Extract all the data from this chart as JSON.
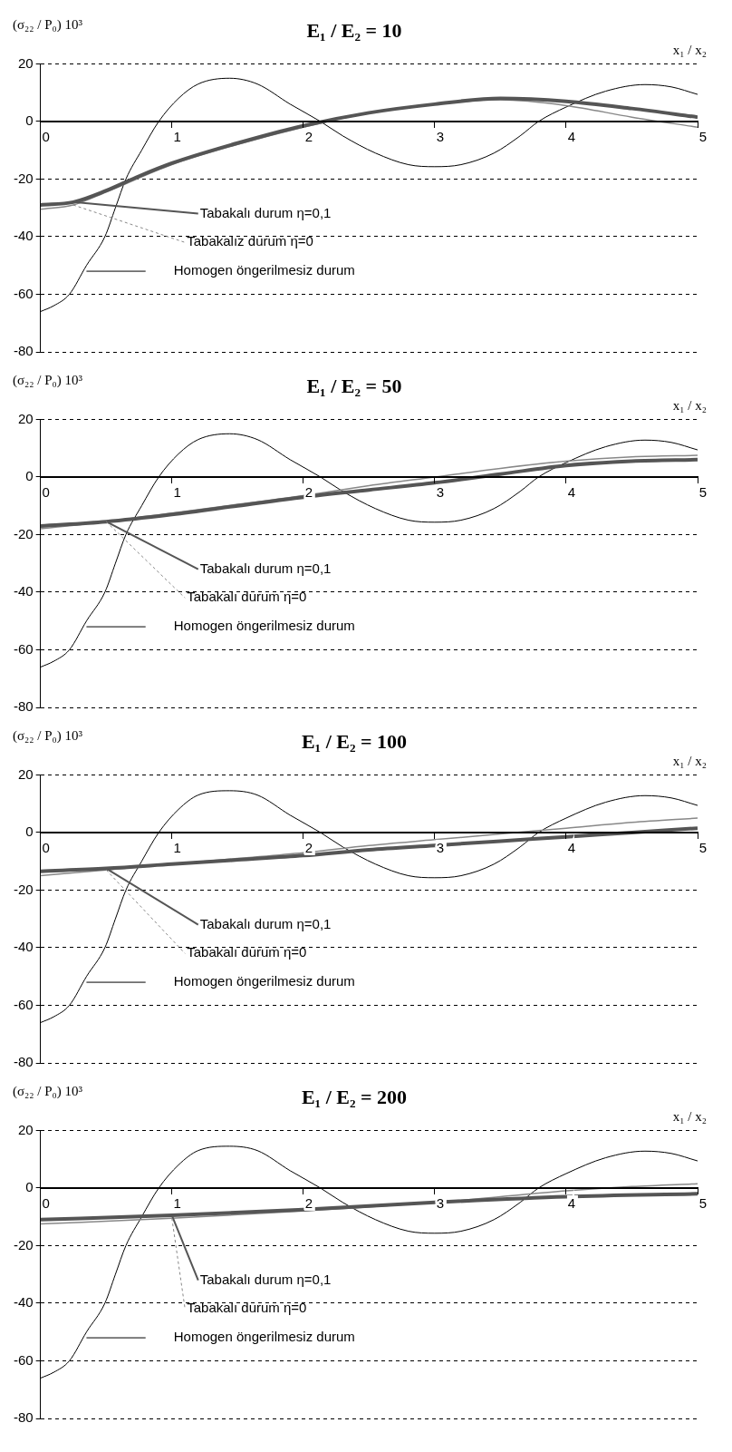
{
  "chart_data": [
    {
      "type": "line",
      "title": "E₁ / E₂ = 10",
      "ylabel": "(σ₂₂ / P₀) 10³",
      "xlabel": "x₁ / x₂",
      "xlim": [
        0,
        5
      ],
      "xticks": [
        0,
        1,
        2,
        3,
        4,
        5
      ],
      "ylim": [
        -80,
        20
      ],
      "yticks": [
        -80,
        -60,
        -40,
        -20,
        0,
        20
      ],
      "grid": "y",
      "legend": "left",
      "series": [
        {
          "name": "Tabakalı durum η=0,1",
          "color": "#555555",
          "x": [
            0,
            0.25,
            0.5,
            0.75,
            1,
            1.5,
            2,
            2.5,
            3,
            3.5,
            4,
            4.5,
            5
          ],
          "values": [
            -29,
            -28,
            -24,
            -19,
            -14.5,
            -7.5,
            -1.5,
            3,
            6,
            8,
            7,
            4.5,
            1.5
          ]
        },
        {
          "name": "Tabakalız durum η=0",
          "color": "#888888",
          "x": [
            0,
            0.25,
            0.5,
            1,
            1.5,
            2,
            2.5,
            3,
            3.5,
            4,
            4.5,
            5
          ],
          "values": [
            -30.5,
            -29,
            -24.5,
            -15,
            -8,
            -2,
            3,
            6,
            7.5,
            5.5,
            1.5,
            -2
          ]
        },
        {
          "name": "Homogen öngerilmesiz durum",
          "color": "#000000",
          "x": [
            0,
            0.1,
            0.22,
            0.35,
            0.49,
            0.57,
            0.65,
            0.77,
            0.9,
            1.05,
            1.2,
            1.44,
            1.65,
            1.9,
            2.13,
            2.3,
            2.55,
            2.8,
            3,
            3.2,
            3.45,
            3.65,
            3.79,
            4,
            4.3,
            4.6,
            4.8,
            5
          ],
          "values": [
            -66,
            -64,
            -60,
            -50,
            -40,
            -30,
            -20,
            -10,
            0,
            8,
            13,
            15,
            13,
            6,
            0,
            -5,
            -11,
            -15,
            -15.7,
            -15,
            -11,
            -5,
            0,
            5,
            10.5,
            12.8,
            12,
            9.4
          ]
        }
      ]
    },
    {
      "type": "line",
      "title": "E₁ / E₂ = 50",
      "ylabel": "(σ₂₂ / P₀) 10³",
      "xlabel": "x₁ / x₂",
      "xlim": [
        0,
        5
      ],
      "xticks": [
        0,
        1,
        2,
        3,
        4,
        5
      ],
      "ylim": [
        -80,
        20
      ],
      "yticks": [
        -80,
        -60,
        -40,
        -20,
        0,
        20
      ],
      "grid": "y",
      "legend": "left",
      "series": [
        {
          "name": "Tabakalı durum η=0,1",
          "color": "#555555",
          "x": [
            0,
            0.5,
            1,
            1.5,
            2,
            2.5,
            3,
            3.5,
            4,
            4.5,
            5
          ],
          "values": [
            -17,
            -15.5,
            -13,
            -10,
            -7,
            -4.5,
            -2,
            1,
            4,
            5.5,
            6
          ]
        },
        {
          "name": "Tabakalı durum η=0",
          "color": "#888888",
          "x": [
            0,
            0.5,
            1,
            1.5,
            2,
            2.5,
            3,
            3.5,
            4,
            4.5,
            5
          ],
          "values": [
            -18,
            -15.5,
            -12.5,
            -9.5,
            -6.5,
            -3,
            0,
            3,
            5.5,
            7,
            7.5
          ]
        },
        {
          "name": "Homogen öngerilmesiz durum",
          "color": "#000000",
          "x": [
            0,
            0.1,
            0.22,
            0.35,
            0.49,
            0.57,
            0.65,
            0.77,
            0.9,
            1.05,
            1.2,
            1.44,
            1.65,
            1.9,
            2.13,
            2.3,
            2.55,
            2.8,
            3,
            3.2,
            3.45,
            3.65,
            3.79,
            4,
            4.3,
            4.6,
            4.8,
            5
          ],
          "values": [
            -66,
            -64,
            -60,
            -50,
            -40,
            -30,
            -20,
            -10,
            0,
            8,
            13,
            15,
            13,
            6,
            0,
            -5,
            -11,
            -15,
            -15.7,
            -15,
            -11,
            -5,
            0,
            5,
            10.5,
            12.8,
            12,
            9.4
          ]
        }
      ]
    },
    {
      "type": "line",
      "title": "E₁ / E₂ = 100",
      "ylabel": "(σ₂₂ / P₀) 10³",
      "xlabel": "x₁ / x₂",
      "xlim": [
        0,
        5
      ],
      "xticks": [
        0,
        1,
        2,
        3,
        4,
        5
      ],
      "ylim": [
        -80,
        20
      ],
      "yticks": [
        -80,
        -60,
        -40,
        -20,
        0,
        20
      ],
      "grid": "y",
      "legend": "left",
      "series": [
        {
          "name": "Tabakalı durum η=0,1",
          "color": "#555555",
          "x": [
            0,
            0.5,
            1,
            1.5,
            2,
            2.5,
            3,
            3.5,
            4,
            4.5,
            5
          ],
          "values": [
            -13.5,
            -12.5,
            -11,
            -9.5,
            -8,
            -6,
            -4.5,
            -3,
            -1.5,
            0,
            1.5
          ]
        },
        {
          "name": "Tabakalı durum η=0",
          "color": "#888888",
          "x": [
            0,
            0.5,
            1,
            1.5,
            2,
            2.5,
            3,
            3.5,
            4,
            4.5,
            5
          ],
          "values": [
            -15,
            -13,
            -11,
            -9,
            -7,
            -4.5,
            -2.5,
            -0.5,
            1.5,
            3.5,
            5
          ]
        },
        {
          "name": "Homogen öngerilmesiz durum",
          "color": "#000000",
          "x": [
            0,
            0.1,
            0.22,
            0.35,
            0.49,
            0.57,
            0.65,
            0.77,
            0.9,
            1.05,
            1.2,
            1.44,
            1.65,
            1.9,
            2.13,
            2.3,
            2.55,
            2.8,
            3,
            3.2,
            3.45,
            3.65,
            3.79,
            4,
            4.3,
            4.6,
            4.8,
            5
          ],
          "values": [
            -66,
            -64,
            -60,
            -50,
            -40,
            -30,
            -20,
            -10,
            0,
            8,
            13,
            14.5,
            13,
            6,
            0,
            -5,
            -11,
            -15,
            -15.7,
            -15,
            -11,
            -5,
            0,
            5,
            10.5,
            12.8,
            12,
            9.4
          ]
        }
      ]
    },
    {
      "type": "line",
      "title": "E₁ / E₂ = 200",
      "ylabel": "(σ₂₂ / P₀) 10³",
      "xlabel": "x₁ / x₂",
      "xlim": [
        0,
        5
      ],
      "xticks": [
        0,
        1,
        2,
        3,
        4,
        5
      ],
      "ylim": [
        -80,
        20
      ],
      "yticks": [
        -80,
        -60,
        -40,
        -20,
        0,
        20
      ],
      "grid": "y",
      "legend": "left",
      "series": [
        {
          "name": "Tabakalı durum η=0,1",
          "color": "#555555",
          "x": [
            0,
            1,
            2,
            3,
            4,
            5
          ],
          "values": [
            -11,
            -9.5,
            -7.5,
            -5,
            -3,
            -2
          ]
        },
        {
          "name": "Tabakalı durum η=0",
          "color": "#888888",
          "x": [
            0,
            1,
            2,
            3,
            3.5,
            4,
            4.5,
            5
          ],
          "values": [
            -12.5,
            -10.5,
            -8,
            -5,
            -3,
            -1,
            0.5,
            1.5
          ]
        },
        {
          "name": "Homogen öngerilmesiz durum",
          "color": "#000000",
          "x": [
            0,
            0.1,
            0.22,
            0.35,
            0.49,
            0.57,
            0.65,
            0.77,
            0.9,
            1.05,
            1.2,
            1.44,
            1.65,
            1.9,
            2.13,
            2.3,
            2.55,
            2.8,
            3,
            3.2,
            3.45,
            3.65,
            3.79,
            4,
            4.3,
            4.6,
            4.8,
            5
          ],
          "values": [
            -66,
            -64,
            -60,
            -50,
            -40,
            -30,
            -20,
            -10,
            0,
            8,
            13,
            14.5,
            13,
            6,
            0,
            -5,
            -11,
            -15,
            -15.7,
            -15,
            -11,
            -5,
            0,
            5,
            10.5,
            12.8,
            12,
            9.4
          ]
        }
      ]
    }
  ]
}
